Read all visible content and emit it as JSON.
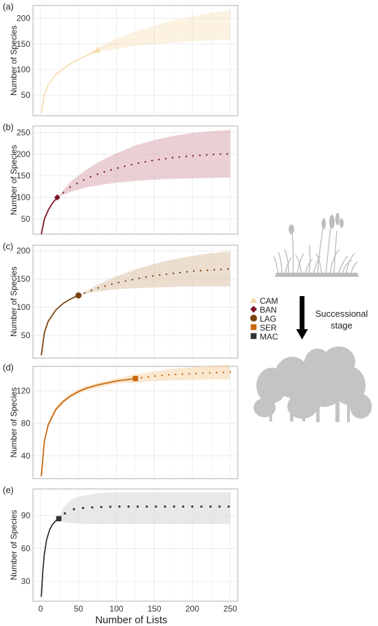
{
  "figure": {
    "xlabel": "Number of Lists",
    "x_ticks": [
      0,
      50,
      100,
      150,
      200,
      250
    ],
    "xlim": [
      -10,
      260
    ],
    "legend_items": [
      "CAM",
      "BAN",
      "LAG",
      "SER",
      "MAC"
    ],
    "succession_label_line1": "Successional",
    "succession_label_line2": "stage"
  },
  "chart_data": [
    {
      "panel": "(a)",
      "type": "line",
      "name": "CAM",
      "color": "#F5D9A8",
      "marker": "triangle",
      "ylabel": "Number of Species",
      "y_ticks": [
        50,
        100,
        150,
        200
      ],
      "ylim": [
        10,
        225
      ],
      "observed_n": 75,
      "observed_value": 138,
      "x": [
        1,
        5,
        10,
        20,
        30,
        40,
        50,
        60,
        75,
        100,
        125,
        150,
        175,
        200,
        225,
        250
      ],
      "y": [
        15,
        50,
        70,
        90,
        102,
        112,
        120,
        127,
        138,
        150,
        160,
        168,
        175,
        180,
        185,
        188
      ],
      "ci_low": [
        15,
        50,
        70,
        90,
        102,
        112,
        120,
        127,
        134,
        140,
        146,
        150,
        153,
        155,
        157,
        158
      ],
      "ci_high": [
        15,
        50,
        70,
        90,
        102,
        112,
        120,
        127,
        142,
        161,
        175,
        186,
        196,
        204,
        211,
        216
      ]
    },
    {
      "panel": "(b)",
      "type": "line",
      "name": "BAN",
      "color": "#7B1424",
      "ci_color": "#D8A9B1",
      "marker": "diamond",
      "ylabel": "Number of Species",
      "y_ticks": [
        50,
        100,
        150,
        200,
        250
      ],
      "ylim": [
        15,
        265
      ],
      "observed_n": 22,
      "observed_value": 100,
      "x": [
        1,
        5,
        10,
        15,
        22,
        40,
        60,
        80,
        100,
        125,
        150,
        175,
        200,
        225,
        250
      ],
      "y": [
        15,
        50,
        70,
        85,
        100,
        125,
        143,
        157,
        167,
        178,
        186,
        192,
        196,
        199,
        201
      ],
      "ci_low": [
        15,
        50,
        70,
        85,
        100,
        113,
        123,
        129,
        134,
        138,
        141,
        143,
        144,
        145,
        146
      ],
      "ci_high": [
        15,
        50,
        70,
        85,
        100,
        137,
        164,
        185,
        202,
        220,
        233,
        242,
        249,
        253,
        256
      ]
    },
    {
      "panel": "(c)",
      "type": "line",
      "name": "LAG",
      "color": "#7A4210",
      "ci_color": "#DDC2A8",
      "marker": "circle",
      "ylabel": "Number of Species",
      "y_ticks": [
        50,
        100,
        150,
        200
      ],
      "ylim": [
        10,
        210
      ],
      "observed_n": 50,
      "observed_value": 121,
      "x": [
        1,
        5,
        10,
        20,
        30,
        40,
        50,
        75,
        100,
        125,
        150,
        175,
        200,
        225,
        250
      ],
      "y": [
        15,
        55,
        75,
        95,
        107,
        115,
        121,
        134,
        143,
        150,
        156,
        160,
        164,
        166,
        168
      ],
      "ci_low": [
        15,
        55,
        75,
        95,
        107,
        115,
        121,
        128,
        132,
        134,
        135,
        136,
        137,
        137,
        137
      ],
      "ci_high": [
        15,
        55,
        75,
        95,
        107,
        115,
        121,
        140,
        155,
        167,
        177,
        185,
        191,
        196,
        199
      ]
    },
    {
      "panel": "(d)",
      "type": "line",
      "name": "SER",
      "color": "#C9690E",
      "ci_color": "#F5D3A9",
      "marker": "square",
      "ylabel": "Number of Species",
      "y_ticks": [
        40,
        80,
        120
      ],
      "ylim": [
        12,
        150
      ],
      "observed_n": 125,
      "observed_value": 135,
      "x": [
        1,
        5,
        10,
        20,
        30,
        40,
        50,
        60,
        75,
        100,
        125,
        150,
        175,
        200,
        225,
        250
      ],
      "y": [
        15,
        58,
        78,
        97,
        107,
        114,
        119,
        123,
        127,
        132,
        135,
        138,
        140,
        141,
        142,
        143
      ],
      "ci_low": [
        15,
        55,
        75,
        94,
        104,
        111,
        116,
        120,
        124,
        129,
        130,
        132,
        133,
        133,
        134,
        134
      ],
      "ci_high": [
        15,
        61,
        81,
        100,
        110,
        117,
        122,
        126,
        130,
        135,
        140,
        144,
        147,
        149,
        151,
        152
      ]
    },
    {
      "panel": "(e)",
      "type": "line",
      "name": "MAC",
      "color": "#333333",
      "ci_color": "#D6D6D6",
      "marker": "square",
      "ylabel": "Number of Species",
      "y_ticks": [
        30,
        60,
        90
      ],
      "ylim": [
        12,
        114
      ],
      "observed_n": 24,
      "observed_value": 87,
      "x": [
        1,
        3,
        5,
        8,
        12,
        16,
        20,
        24,
        30,
        40,
        50,
        75,
        100,
        150,
        200,
        250
      ],
      "y": [
        16,
        40,
        55,
        68,
        77,
        82,
        85,
        87,
        91,
        95,
        96.5,
        97.5,
        98,
        98,
        98,
        98
      ],
      "ci_low": [
        16,
        40,
        55,
        68,
        77,
        82,
        85,
        87,
        84,
        83,
        82.5,
        82,
        82,
        82,
        82,
        82
      ],
      "ci_high": [
        16,
        40,
        55,
        68,
        77,
        82,
        85,
        87,
        97,
        104,
        107,
        110,
        111,
        111,
        111,
        111
      ]
    }
  ]
}
